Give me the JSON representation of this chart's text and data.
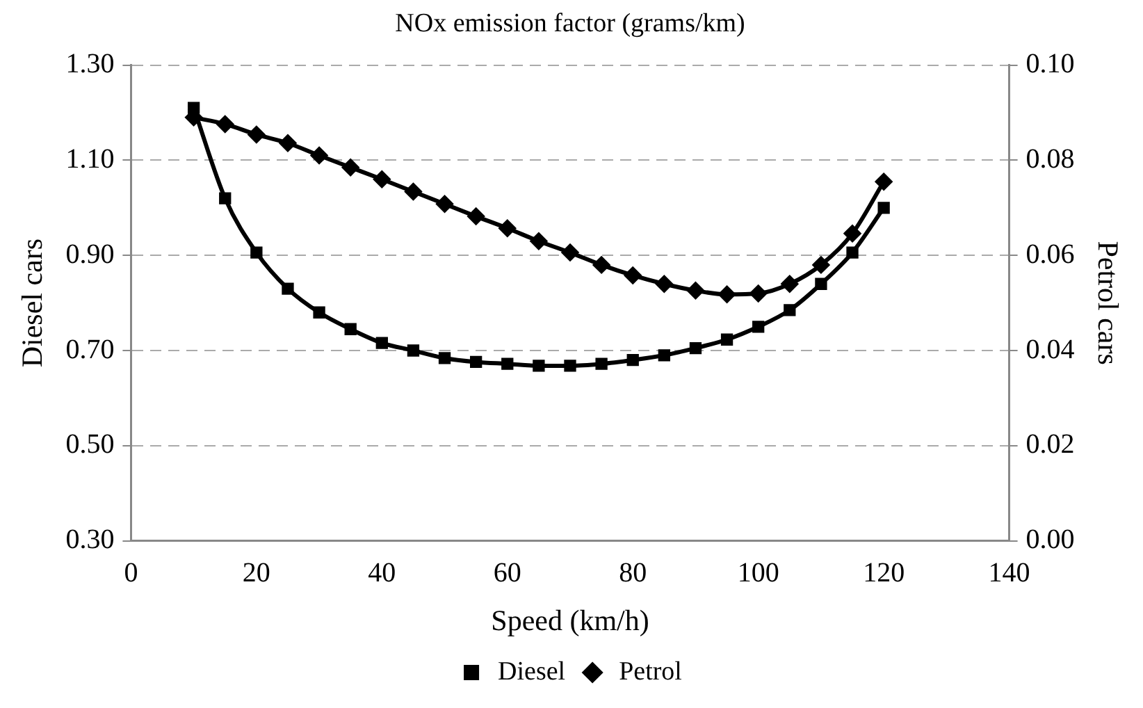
{
  "chart_data": {
    "type": "line",
    "title": "NOx emission factor (grams/km)",
    "xlabel": "Speed (km/h)",
    "ylabel": "Diesel cars",
    "y2label": "Petrol cars",
    "x": [
      10,
      15,
      20,
      25,
      30,
      35,
      40,
      45,
      50,
      55,
      60,
      65,
      70,
      75,
      80,
      85,
      90,
      95,
      100,
      105,
      110,
      115,
      120
    ],
    "series": [
      {
        "name": "Diesel",
        "color": "#000000",
        "marker": "square",
        "values": [
          1.21,
          1.02,
          0.906,
          0.83,
          0.78,
          0.745,
          0.716,
          0.7,
          0.684,
          0.676,
          0.672,
          0.668,
          0.668,
          0.672,
          0.68,
          0.69,
          0.705,
          0.723,
          0.75,
          0.785,
          0.84,
          0.906,
          1.0
        ]
      },
      {
        "name": "Petrol",
        "color": "#000000",
        "marker": "diamond",
        "axis": "y2",
        "values": [
          0.089,
          0.0876,
          0.0854,
          0.0836,
          0.081,
          0.0785,
          0.076,
          0.0734,
          0.0708,
          0.0682,
          0.0657,
          0.063,
          0.0606,
          0.058,
          0.0558,
          0.054,
          0.0526,
          0.0518,
          0.052,
          0.054,
          0.058,
          0.0646,
          0.0755
        ]
      }
    ],
    "xlim": [
      0,
      140
    ],
    "xticks": [
      0,
      20,
      40,
      60,
      80,
      100,
      120,
      140
    ],
    "ylim": [
      0.3,
      1.3
    ],
    "yticks": [
      {
        "value": 0.3,
        "label": "0.30"
      },
      {
        "value": 0.5,
        "label": "0.50"
      },
      {
        "value": 0.7,
        "label": "0.70"
      },
      {
        "value": 0.9,
        "label": "0.90"
      },
      {
        "value": 1.1,
        "label": "1.10"
      },
      {
        "value": 1.3,
        "label": "1.30"
      }
    ],
    "y2lim": [
      0,
      0.1
    ],
    "y2ticks": [
      {
        "value": 0,
        "label": "0.00"
      },
      {
        "value": 0.02,
        "label": "0.02"
      },
      {
        "value": 0.04,
        "label": "0.04"
      },
      {
        "value": 0.06,
        "label": "0.06"
      },
      {
        "value": 0.08,
        "label": "0.08"
      },
      {
        "value": 0.1,
        "label": "0.10"
      }
    ],
    "grid": "y",
    "legend": "bottom",
    "line_style": "solid"
  }
}
